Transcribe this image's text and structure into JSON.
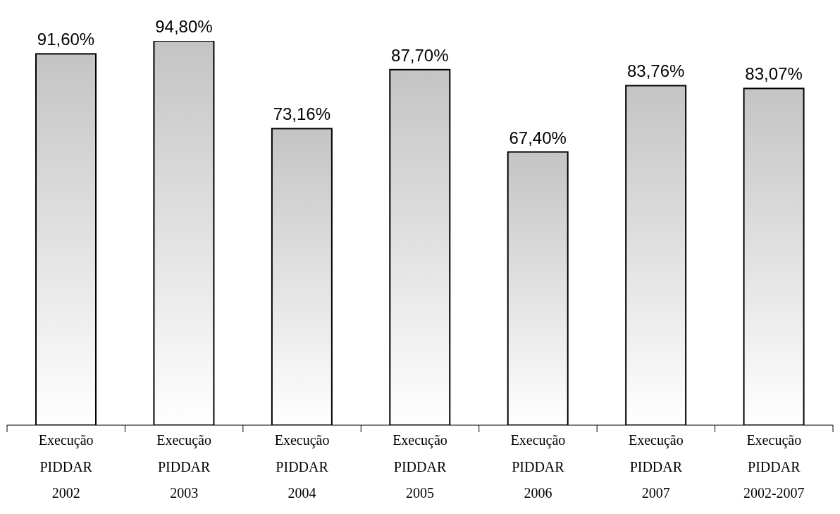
{
  "chart_data": {
    "type": "bar",
    "categories": [
      "Execução PIDDAR 2002",
      "Execução PIDDAR 2003",
      "Execução PIDDAR 2004",
      "Execução PIDDAR 2005",
      "Execução PIDDAR 2006",
      "Execução PIDDAR 2007",
      "Execução PIDDAR 2002-2007"
    ],
    "values": [
      91.6,
      94.8,
      73.16,
      87.7,
      67.4,
      83.76,
      83.07
    ],
    "value_labels": [
      "91,60%",
      "94,80%",
      "73,16%",
      "87,70%",
      "67,40%",
      "83,76%",
      "83,07%"
    ],
    "color": "#c4c4c4",
    "tick_labels": "x"
  }
}
